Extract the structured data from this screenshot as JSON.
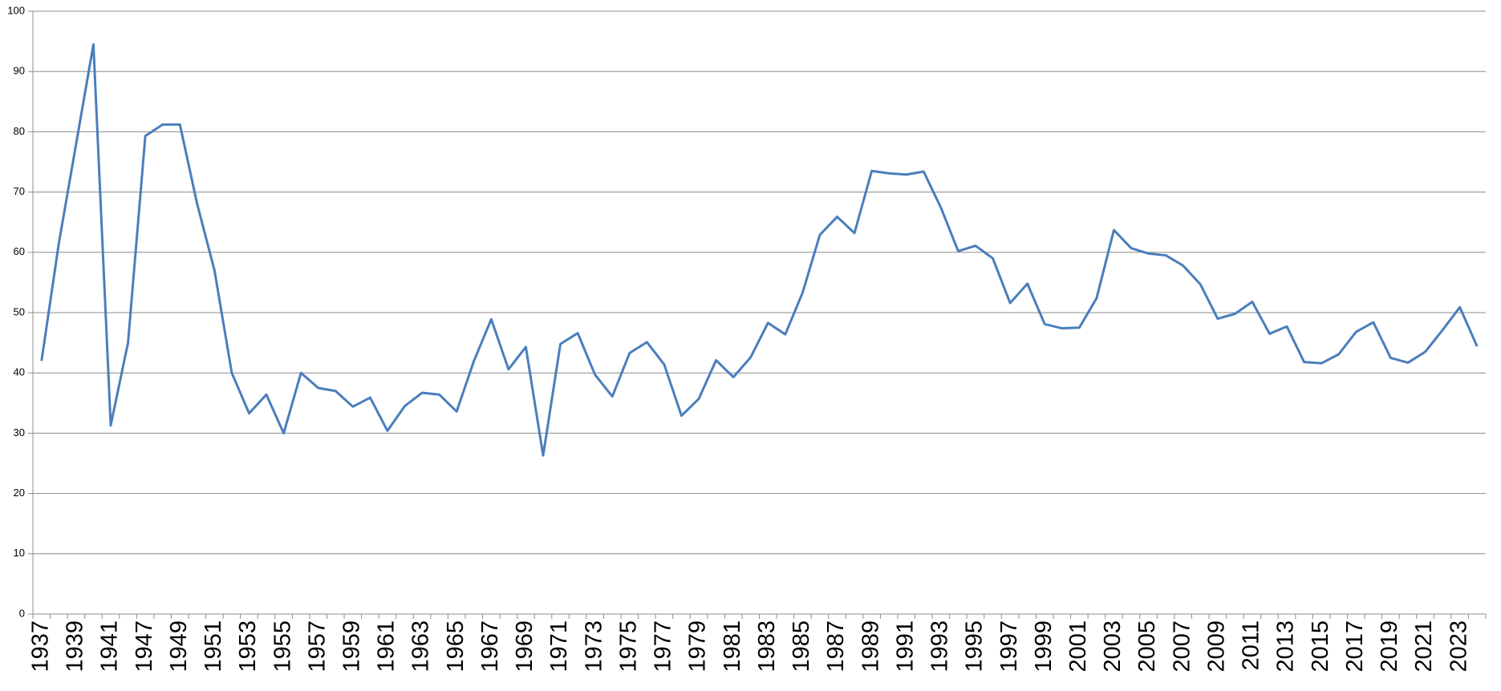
{
  "chart_data": {
    "type": "line",
    "categories": [
      "1937",
      null,
      "1939",
      null,
      "1941",
      null,
      "1947",
      null,
      "1949",
      null,
      "1951",
      null,
      "1953",
      null,
      "1955",
      null,
      "1957",
      null,
      "1959",
      null,
      "1961",
      null,
      "1963",
      null,
      "1965",
      null,
      "1967",
      null,
      "1969",
      null,
      "1971",
      null,
      "1973",
      null,
      "1975",
      null,
      "1977",
      null,
      "1979",
      null,
      "1981",
      null,
      "1983",
      null,
      "1985",
      null,
      "1987",
      null,
      "1989",
      null,
      "1991",
      null,
      "1993",
      null,
      "1995",
      null,
      "1997",
      null,
      "1999",
      null,
      "2001",
      null,
      "2003",
      null,
      "2005",
      null,
      "2007",
      null,
      "2009",
      null,
      "2011",
      null,
      "2013",
      null,
      "2015",
      null,
      "2017",
      null,
      "2019",
      null,
      "2021",
      null,
      "2023",
      null
    ],
    "values": [
      42,
      61.5,
      78,
      94.5,
      31.3,
      45,
      79.3,
      81.2,
      81.2,
      68,
      57,
      40,
      33.3,
      36.4,
      30,
      40,
      37.5,
      37,
      34.4,
      35.9,
      30.4,
      34.5,
      36.7,
      36.4,
      33.6,
      42,
      48.9,
      40.6,
      44.3,
      26.3,
      44.8,
      46.6,
      39.7,
      36.1,
      43.3,
      45.1,
      41.4,
      32.9,
      35.7,
      42.1,
      39.3,
      42.6,
      48.3,
      46.4,
      53.3,
      62.9,
      65.9,
      63.2,
      73.5,
      73.1,
      72.9,
      73.4,
      67.4,
      60.2,
      61.1,
      59,
      51.6,
      54.8,
      48.1,
      47.4,
      47.5,
      52.4,
      63.7,
      60.7,
      59.8,
      59.5,
      57.8,
      54.7,
      49,
      49.8,
      51.8,
      46.5,
      47.7,
      41.8,
      41.6,
      43.1,
      46.8,
      48.4,
      42.5,
      41.7,
      43.5,
      47.1,
      50.9,
      44.4
    ],
    "color": "#4a7ebb",
    "ylim": [
      0,
      100
    ],
    "yticks": [
      0,
      10,
      20,
      30,
      40,
      50,
      60,
      70,
      80,
      90,
      100
    ],
    "grid": true
  }
}
